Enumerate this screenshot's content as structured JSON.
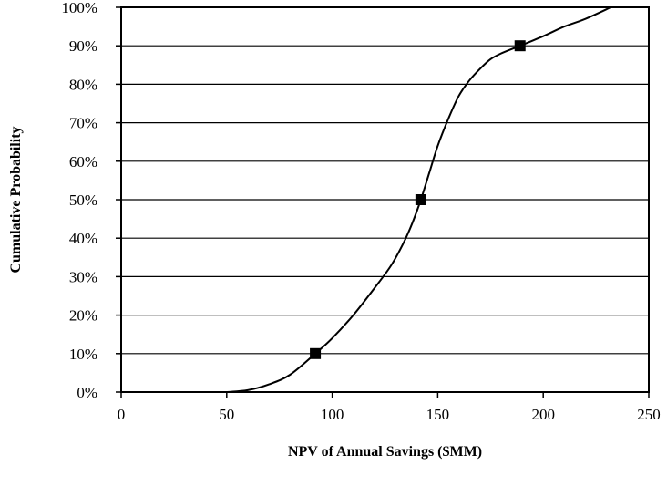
{
  "chart_data": {
    "type": "line",
    "title": "",
    "xlabel": "NPV of Annual Savings ($MM)",
    "ylabel": "Cumulative Probability",
    "xlim": [
      0,
      250
    ],
    "ylim": [
      0,
      1
    ],
    "x_ticks": [
      "0",
      "50",
      "100",
      "150",
      "200",
      "250"
    ],
    "y_ticks": [
      "0%",
      "10%",
      "20%",
      "30%",
      "40%",
      "50%",
      "60%",
      "70%",
      "80%",
      "90%",
      "100%"
    ],
    "grid": "horizontal",
    "series": [
      {
        "x": [
          50,
          60,
          70,
          80,
          92,
          100,
          110,
          120,
          128,
          134,
          138,
          142,
          146,
          150,
          155,
          160,
          165,
          170,
          175,
          180,
          189,
          200,
          210,
          220,
          232
        ],
        "y": [
          0,
          0.005,
          0.02,
          0.045,
          0.1,
          0.14,
          0.2,
          0.27,
          0.33,
          0.39,
          0.44,
          0.5,
          0.57,
          0.64,
          0.71,
          0.77,
          0.81,
          0.84,
          0.865,
          0.88,
          0.9,
          0.925,
          0.95,
          0.97,
          1.0
        ],
        "color": "#000000"
      }
    ],
    "markers": {
      "x": [
        92,
        142,
        189
      ],
      "y": [
        0.1,
        0.5,
        0.9
      ],
      "color": "#000000",
      "shape": "square"
    }
  }
}
